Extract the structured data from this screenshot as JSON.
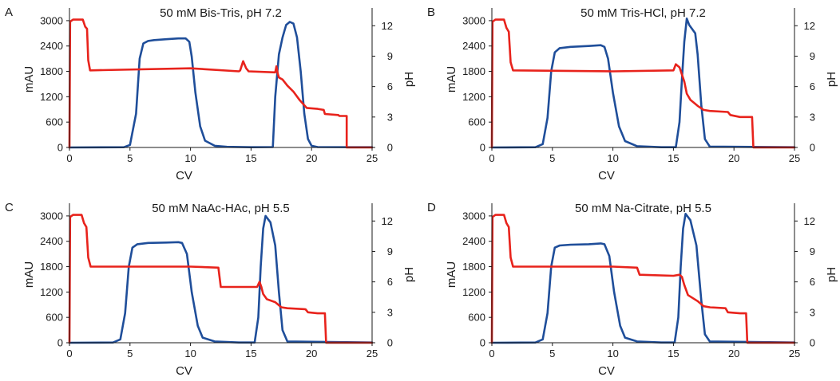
{
  "figure": {
    "colors": {
      "mau": "#1f4e9a",
      "ph": "#e8231c",
      "axis": "#1a1a1a"
    }
  },
  "chart_data": [
    {
      "panel": "A",
      "type": "line",
      "title": "50 mM Bis-Tris, pH 7.2",
      "xlabel": "CV",
      "ylabel_left": "mAU",
      "ylabel_right": "pH",
      "xlim": [
        0,
        25
      ],
      "ylim_left": [
        0,
        3300
      ],
      "ylim_right": [
        0,
        13.75
      ],
      "xticks": [
        0,
        5,
        10,
        15,
        20,
        25
      ],
      "yticks_left": [
        0,
        600,
        1200,
        1800,
        2400,
        3000
      ],
      "yticks_right": [
        0,
        3,
        6,
        9,
        12
      ],
      "series": [
        {
          "name": "mAU",
          "axis": "left",
          "color": "#1f4e9a",
          "x": [
            0,
            4.5,
            5.0,
            5.5,
            5.8,
            6.1,
            6.5,
            7,
            8,
            9,
            9.6,
            9.9,
            10.1,
            10.4,
            10.8,
            11.2,
            12,
            13,
            15,
            16.8,
            17.0,
            17.3,
            17.6,
            17.9,
            18.2,
            18.5,
            18.8,
            19.1,
            19.4,
            19.7,
            20.0,
            20.5,
            25
          ],
          "values": [
            0,
            5,
            60,
            800,
            2100,
            2460,
            2520,
            2540,
            2560,
            2580,
            2580,
            2500,
            2150,
            1300,
            500,
            160,
            40,
            15,
            5,
            10,
            1200,
            2200,
            2600,
            2900,
            2970,
            2930,
            2600,
            1800,
            800,
            200,
            40,
            10,
            5
          ]
        },
        {
          "name": "pH",
          "axis": "right",
          "color": "#e8231c",
          "x": [
            0,
            0.05,
            0.3,
            1.1,
            1.3,
            1.45,
            1.55,
            1.7,
            10,
            14,
            14.1,
            14.35,
            14.6,
            14.8,
            17,
            17.1,
            17.2,
            17.3,
            17.6,
            18,
            18.5,
            19,
            19.6,
            20.5,
            21,
            21.1,
            22.2,
            22.3,
            22.9,
            22.9,
            25
          ],
          "values": [
            0,
            12.4,
            12.6,
            12.6,
            11.9,
            11.7,
            8.6,
            7.6,
            7.8,
            7.5,
            7.6,
            8.5,
            7.8,
            7.5,
            7.4,
            8.0,
            7.3,
            6.9,
            6.7,
            6.1,
            5.5,
            4.7,
            3.9,
            3.8,
            3.7,
            3.3,
            3.2,
            3.1,
            3.1,
            0,
            0
          ]
        }
      ]
    },
    {
      "panel": "B",
      "type": "line",
      "title": "50 mM Tris-HCl, pH 7.2",
      "xlabel": "CV",
      "ylabel_left": "mAU",
      "ylabel_right": "pH",
      "xlim": [
        0,
        25
      ],
      "ylim_left": [
        0,
        3300
      ],
      "ylim_right": [
        0,
        13.75
      ],
      "xticks": [
        0,
        5,
        10,
        15,
        20,
        25
      ],
      "yticks_left": [
        0,
        600,
        1200,
        1800,
        2400,
        3000
      ],
      "yticks_right": [
        0,
        3,
        6,
        9,
        12
      ],
      "series": [
        {
          "name": "mAU",
          "axis": "left",
          "color": "#1f4e9a",
          "x": [
            0,
            3.6,
            4.2,
            4.6,
            4.9,
            5.2,
            5.6,
            6.5,
            8,
            9,
            9.3,
            9.6,
            10,
            10.5,
            11,
            12,
            14,
            15.2,
            15.5,
            15.7,
            15.9,
            16.1,
            16.3,
            16.8,
            17.0,
            17.3,
            17.6,
            18,
            25
          ],
          "values": [
            0,
            5,
            80,
            700,
            1800,
            2250,
            2350,
            2380,
            2400,
            2420,
            2380,
            2100,
            1300,
            500,
            150,
            30,
            5,
            5,
            600,
            1600,
            2500,
            3050,
            2900,
            2700,
            2200,
            1000,
            200,
            20,
            5
          ]
        },
        {
          "name": "pH",
          "axis": "right",
          "color": "#e8231c",
          "x": [
            0,
            0.05,
            0.3,
            1.0,
            1.2,
            1.4,
            1.55,
            1.75,
            10,
            15,
            15.2,
            15.5,
            15.7,
            15.9,
            16.1,
            16.4,
            17,
            17.5,
            18,
            19.5,
            19.7,
            20.5,
            21.5,
            21.6,
            25
          ],
          "values": [
            0,
            12.4,
            12.6,
            12.6,
            11.8,
            11.4,
            8.4,
            7.6,
            7.5,
            7.6,
            8.2,
            7.9,
            7.2,
            6.5,
            5.3,
            4.7,
            4.1,
            3.7,
            3.6,
            3.5,
            3.2,
            3.0,
            3.0,
            0,
            0
          ]
        }
      ]
    },
    {
      "panel": "C",
      "type": "line",
      "title": "50 mM NaAc-HAc, pH 5.5",
      "xlabel": "CV",
      "ylabel_left": "mAU",
      "ylabel_right": "pH",
      "xlim": [
        0,
        25
      ],
      "ylim_left": [
        0,
        3300
      ],
      "ylim_right": [
        0,
        13.75
      ],
      "xticks": [
        0,
        5,
        10,
        15,
        20,
        25
      ],
      "yticks_left": [
        0,
        600,
        1200,
        1800,
        2400,
        3000
      ],
      "yticks_right": [
        0,
        3,
        6,
        9,
        12
      ],
      "series": [
        {
          "name": "mAU",
          "axis": "left",
          "color": "#1f4e9a",
          "x": [
            0,
            3.6,
            4.2,
            4.6,
            4.9,
            5.2,
            5.6,
            6.5,
            8,
            9,
            9.3,
            9.7,
            10.1,
            10.6,
            11,
            12,
            14,
            15.3,
            15.6,
            15.8,
            16.0,
            16.2,
            16.6,
            17.0,
            17.3,
            17.6,
            18,
            25
          ],
          "values": [
            0,
            5,
            80,
            700,
            1800,
            2250,
            2330,
            2360,
            2370,
            2380,
            2360,
            2100,
            1200,
            400,
            120,
            30,
            5,
            5,
            600,
            1800,
            2700,
            3000,
            2850,
            2300,
            1200,
            300,
            30,
            5
          ]
        },
        {
          "name": "pH",
          "axis": "right",
          "color": "#e8231c",
          "x": [
            0,
            0.05,
            0.3,
            1.0,
            1.2,
            1.4,
            1.55,
            1.75,
            10,
            12.3,
            12.5,
            15.5,
            15.7,
            15.85,
            16.0,
            16.3,
            17,
            17.5,
            18,
            19.5,
            19.7,
            20.5,
            21.1,
            21.2,
            25
          ],
          "values": [
            0,
            12.4,
            12.6,
            12.6,
            11.8,
            11.4,
            8.4,
            7.5,
            7.5,
            7.4,
            5.5,
            5.5,
            6.0,
            5.5,
            4.8,
            4.3,
            4.0,
            3.5,
            3.4,
            3.3,
            3.0,
            2.9,
            2.9,
            0,
            0
          ]
        }
      ]
    },
    {
      "panel": "D",
      "type": "line",
      "title": "50 mM Na-Citrate, pH 5.5",
      "xlabel": "CV",
      "ylabel_left": "mAU",
      "ylabel_right": "pH",
      "xlim": [
        0,
        25
      ],
      "ylim_left": [
        0,
        3300
      ],
      "ylim_right": [
        0,
        13.75
      ],
      "xticks": [
        0,
        5,
        10,
        15,
        20,
        25
      ],
      "yticks_left": [
        0,
        600,
        1200,
        1800,
        2400,
        3000
      ],
      "yticks_right": [
        0,
        3,
        6,
        9,
        12
      ],
      "series": [
        {
          "name": "mAU",
          "axis": "left",
          "color": "#1f4e9a",
          "x": [
            0,
            3.6,
            4.2,
            4.6,
            4.9,
            5.2,
            5.6,
            6.5,
            8,
            9,
            9.3,
            9.7,
            10.1,
            10.6,
            11,
            12,
            14,
            15.1,
            15.4,
            15.6,
            15.8,
            16.0,
            16.4,
            16.9,
            17.3,
            17.6,
            18,
            25
          ],
          "values": [
            0,
            5,
            80,
            700,
            1800,
            2250,
            2300,
            2320,
            2330,
            2350,
            2330,
            2050,
            1200,
            400,
            120,
            30,
            5,
            5,
            600,
            1800,
            2700,
            3050,
            2900,
            2300,
            1000,
            200,
            30,
            5
          ]
        },
        {
          "name": "pH",
          "axis": "right",
          "color": "#e8231c",
          "x": [
            0,
            0.05,
            0.3,
            1.0,
            1.2,
            1.4,
            1.55,
            1.75,
            10,
            12.0,
            12.2,
            15,
            15.5,
            15.7,
            15.9,
            16.2,
            17,
            17.5,
            18,
            19.3,
            19.5,
            20.5,
            21.0,
            21.1,
            24,
            25
          ],
          "values": [
            0,
            12.4,
            12.6,
            12.6,
            11.8,
            11.4,
            8.4,
            7.5,
            7.5,
            7.4,
            6.7,
            6.6,
            6.7,
            6.5,
            5.7,
            4.7,
            4.1,
            3.6,
            3.5,
            3.4,
            3.0,
            2.9,
            2.9,
            0,
            0,
            0
          ]
        }
      ]
    }
  ]
}
